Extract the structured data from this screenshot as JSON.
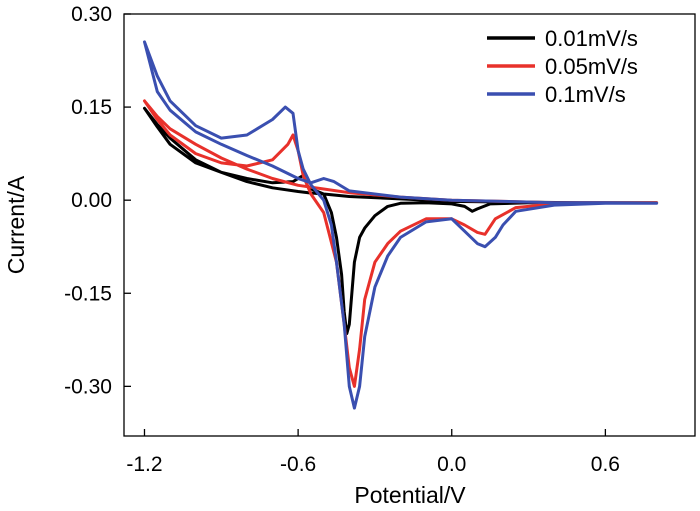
{
  "chart_data": {
    "type": "line",
    "title": "",
    "xlabel": "Potential/V",
    "ylabel": "Current/A",
    "xlim": [
      -1.28,
      0.95
    ],
    "ylim": [
      -0.38,
      0.3
    ],
    "xticks": [
      -1.2,
      -0.6,
      0.0,
      0.6
    ],
    "xtick_labels": [
      "-1.2",
      "-0.6",
      "0.0",
      "0.6"
    ],
    "yticks": [
      0.3,
      0.15,
      0.0,
      -0.15,
      -0.3
    ],
    "ytick_labels": [
      "0.30",
      "0.15",
      "0.00",
      "-0.15",
      "-0.30"
    ],
    "grid": false,
    "legend_position": "top-right",
    "series": [
      {
        "name": "0.01mV/s",
        "color": "#000000",
        "x": [
          -1.2,
          -1.15,
          -1.1,
          -1.0,
          -0.9,
          -0.8,
          -0.7,
          -0.62,
          -0.58,
          -0.56,
          -0.5,
          -0.47,
          -0.45,
          -0.43,
          -0.42,
          -0.41,
          -0.4,
          -0.38,
          -0.36,
          -0.34,
          -0.3,
          -0.25,
          -0.2,
          -0.1,
          0.0,
          0.05,
          0.08,
          0.1,
          0.15,
          0.3,
          0.5,
          0.8,
          0.8,
          0.5,
          0.2,
          0.0,
          -0.2,
          -0.4,
          -0.5,
          -0.56,
          -0.6,
          -0.7,
          -0.8,
          -0.9,
          -1.0,
          -1.1,
          -1.15,
          -1.2
        ],
        "y": [
          0.148,
          0.118,
          0.09,
          0.06,
          0.045,
          0.035,
          0.028,
          0.03,
          0.04,
          0.02,
          0.01,
          -0.02,
          -0.06,
          -0.12,
          -0.18,
          -0.215,
          -0.2,
          -0.1,
          -0.06,
          -0.045,
          -0.025,
          -0.01,
          -0.005,
          -0.004,
          -0.006,
          -0.01,
          -0.018,
          -0.014,
          -0.006,
          -0.004,
          -0.004,
          -0.004,
          -0.004,
          -0.004,
          -0.003,
          -0.002,
          0.002,
          0.006,
          0.01,
          0.012,
          0.014,
          0.02,
          0.03,
          0.045,
          0.065,
          0.1,
          0.122,
          0.148
        ]
      },
      {
        "name": "0.05mV/s",
        "color": "#e8312b",
        "x": [
          -1.2,
          -1.15,
          -1.1,
          -1.0,
          -0.9,
          -0.8,
          -0.7,
          -0.64,
          -0.62,
          -0.6,
          -0.58,
          -0.55,
          -0.5,
          -0.45,
          -0.42,
          -0.4,
          -0.38,
          -0.36,
          -0.34,
          -0.3,
          -0.25,
          -0.2,
          -0.1,
          0.0,
          0.05,
          0.1,
          0.13,
          0.17,
          0.25,
          0.4,
          0.6,
          0.8,
          0.8,
          0.6,
          0.4,
          0.2,
          0.0,
          -0.2,
          -0.4,
          -0.5,
          -0.6,
          -0.7,
          -0.8,
          -0.9,
          -1.0,
          -1.1,
          -1.15,
          -1.2
        ],
        "y": [
          0.16,
          0.13,
          0.105,
          0.075,
          0.06,
          0.055,
          0.065,
          0.09,
          0.105,
          0.08,
          0.04,
          0.01,
          -0.02,
          -0.1,
          -0.2,
          -0.27,
          -0.3,
          -0.24,
          -0.16,
          -0.1,
          -0.07,
          -0.05,
          -0.03,
          -0.03,
          -0.04,
          -0.052,
          -0.055,
          -0.03,
          -0.012,
          -0.006,
          -0.004,
          -0.004,
          -0.004,
          -0.004,
          -0.004,
          -0.002,
          0.0,
          0.005,
          0.012,
          0.018,
          0.024,
          0.035,
          0.05,
          0.068,
          0.09,
          0.115,
          0.135,
          0.16
        ]
      },
      {
        "name": "0.1mV/s",
        "color": "#3a4fb0",
        "x": [
          -1.2,
          -1.15,
          -1.1,
          -1.0,
          -0.9,
          -0.8,
          -0.7,
          -0.65,
          -0.62,
          -0.6,
          -0.58,
          -0.55,
          -0.5,
          -0.47,
          -0.45,
          -0.42,
          -0.4,
          -0.38,
          -0.36,
          -0.34,
          -0.3,
          -0.25,
          -0.2,
          -0.1,
          0.0,
          0.05,
          0.1,
          0.13,
          0.17,
          0.2,
          0.25,
          0.4,
          0.6,
          0.8,
          0.8,
          0.6,
          0.4,
          0.2,
          0.0,
          -0.2,
          -0.4,
          -0.46,
          -0.5,
          -0.55,
          -0.6,
          -0.7,
          -0.8,
          -0.9,
          -1.0,
          -1.1,
          -1.15,
          -1.2
        ],
        "y": [
          0.255,
          0.2,
          0.16,
          0.12,
          0.1,
          0.105,
          0.13,
          0.15,
          0.14,
          0.08,
          0.05,
          0.025,
          0.0,
          -0.04,
          -0.1,
          -0.2,
          -0.3,
          -0.335,
          -0.3,
          -0.22,
          -0.14,
          -0.09,
          -0.06,
          -0.035,
          -0.03,
          -0.05,
          -0.07,
          -0.075,
          -0.06,
          -0.04,
          -0.018,
          -0.008,
          -0.005,
          -0.005,
          -0.005,
          -0.004,
          -0.004,
          -0.002,
          0.0,
          0.005,
          0.015,
          0.03,
          0.035,
          0.028,
          0.035,
          0.055,
          0.072,
          0.09,
          0.11,
          0.145,
          0.175,
          0.255
        ]
      }
    ]
  }
}
